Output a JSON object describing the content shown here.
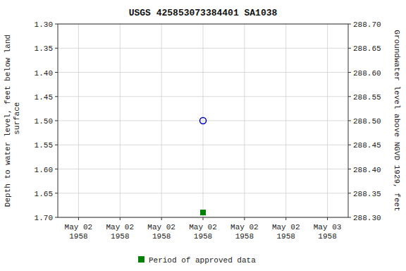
{
  "chart_data": {
    "type": "scatter",
    "title": "USGS 425853073384401 SA1038",
    "ylabel": "Depth to water level, feet below land\n              surface",
    "y2label": "Groundwater level above NGVD 1929, feet",
    "categories": [
      "May 02\n1958",
      "May 02\n1958",
      "May 02\n1958",
      "May 02\n1958",
      "May 02\n1958",
      "May 02\n1958",
      "May 03\n1958"
    ],
    "series": [
      {
        "color": "#0000cc",
        "marker": "circle",
        "values": [
          null,
          null,
          null,
          1.5,
          null,
          null,
          null
        ]
      },
      {
        "name": "Period of approved data",
        "color": "#008000",
        "marker": "square",
        "values": [
          null,
          null,
          null,
          1.69,
          null,
          null,
          null
        ]
      }
    ],
    "ylim": [
      1.7,
      1.3
    ],
    "yticks": [
      {
        "value": 1.3,
        "label": "1.30"
      },
      1.35,
      {
        "value": 1.4,
        "label": "1.40"
      },
      1.45,
      {
        "value": 1.5,
        "label": "1.50"
      },
      1.55,
      {
        "value": 1.6,
        "label": "1.60"
      },
      1.65,
      {
        "value": 1.7,
        "label": "1.70"
      }
    ],
    "y2lim": [
      288.3,
      288.7
    ],
    "y2ticks": [
      {
        "value": 288.3,
        "label": "288.30"
      },
      288.35,
      {
        "value": 288.4,
        "label": "288.40"
      },
      288.45,
      {
        "value": 288.5,
        "label": "288.50"
      },
      288.55,
      {
        "value": 288.6,
        "label": "288.60"
      },
      288.65,
      {
        "value": 288.7,
        "label": "288.70"
      }
    ],
    "grid": true,
    "legend": "bottom"
  }
}
